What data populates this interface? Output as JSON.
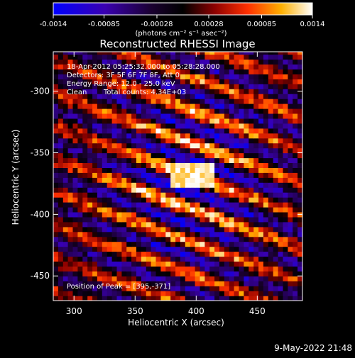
{
  "chart_data": {
    "type": "heatmap",
    "title": "Reconstructed RHESSI Image",
    "xlabel": "Heliocentric X (arcsec)",
    "ylabel": "Heliocentric Y (arcsec)",
    "xlim": [
      283,
      487
    ],
    "ylim": [
      -470,
      -268
    ],
    "x_ticks": [
      300,
      350,
      400,
      450
    ],
    "y_ticks": [
      -300,
      -350,
      -400,
      -450
    ],
    "colorbar": {
      "min": -0.0014,
      "max": 0.0014,
      "ticks": [
        "-0.0014",
        "-0.00085",
        "-0.00028",
        "0.00028",
        "0.00085",
        "0.0014"
      ],
      "label": "(photons cm⁻² s⁻¹ asec⁻²)"
    },
    "annotations": [
      "18-Apr-2012 05:25:32.000 to 05:28:28.000",
      "Detectors: 3F 5F 6F 7F 8F, Att 0",
      "Energy Range: 12.0 - 25.0 keV",
      "Clean",
      "Total counts: 4.34E+03"
    ],
    "peak_label": "Position of Peak = [395,-371]",
    "peak": [
      395,
      -371
    ]
  },
  "timestamp": "9-May-2022 21:48"
}
